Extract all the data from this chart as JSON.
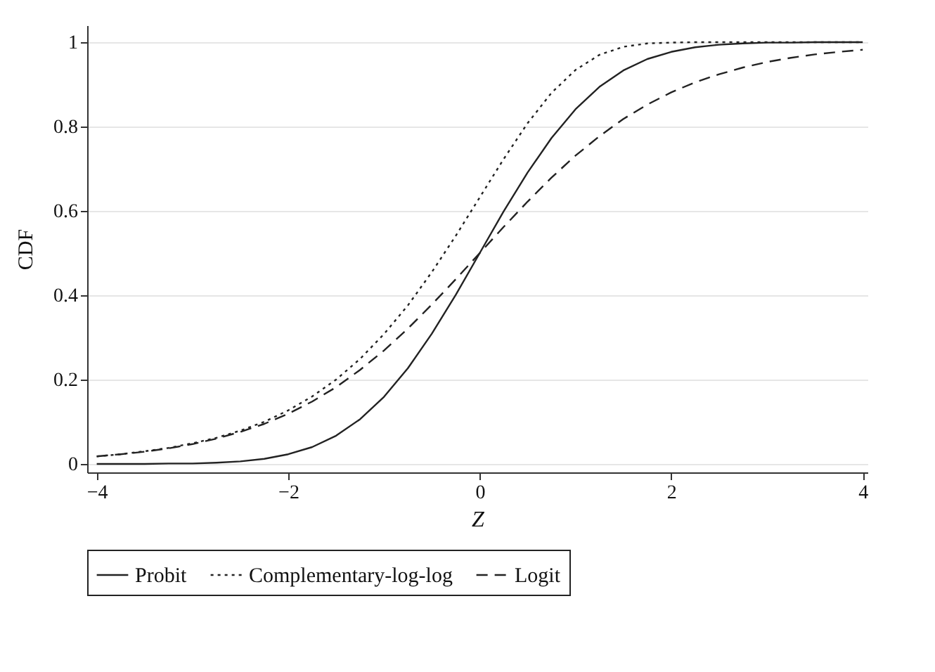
{
  "chart_data": {
    "type": "line",
    "xlabel": "Z",
    "ylabel": "CDF",
    "x": [
      -4,
      -3.75,
      -3.5,
      -3.25,
      -3,
      -2.75,
      -2.5,
      -2.25,
      -2,
      -1.75,
      -1.5,
      -1.25,
      -1,
      -0.75,
      -0.5,
      -0.25,
      0,
      0.25,
      0.5,
      0.75,
      1,
      1.25,
      1.5,
      1.75,
      2,
      2.25,
      2.5,
      2.75,
      3,
      3.25,
      3.5,
      3.75,
      4
    ],
    "series": [
      {
        "name": "Probit",
        "color": "#222222",
        "line_style": "solid",
        "values": [
          0.0,
          0.0,
          0.0,
          0.001,
          0.001,
          0.003,
          0.006,
          0.012,
          0.023,
          0.04,
          0.067,
          0.106,
          0.159,
          0.227,
          0.309,
          0.401,
          0.5,
          0.599,
          0.691,
          0.773,
          0.841,
          0.894,
          0.933,
          0.96,
          0.977,
          0.988,
          0.994,
          0.997,
          0.999,
          0.999,
          1,
          1,
          1
        ]
      },
      {
        "name": "Complementary-log-log",
        "color": "#222222",
        "line_style": "dotted",
        "values": [
          0.018,
          0.023,
          0.03,
          0.038,
          0.049,
          0.062,
          0.079,
          0.1,
          0.127,
          0.16,
          0.2,
          0.249,
          0.308,
          0.376,
          0.455,
          0.541,
          0.632,
          0.723,
          0.808,
          0.88,
          0.934,
          0.97,
          0.989,
          0.997,
          0.999,
          1,
          1,
          1,
          1,
          1,
          1,
          1,
          1
        ]
      },
      {
        "name": "Logit",
        "color": "#222222",
        "line_style": "dashed",
        "values": [
          0.018,
          0.023,
          0.029,
          0.037,
          0.047,
          0.06,
          0.076,
          0.095,
          0.119,
          0.148,
          0.182,
          0.223,
          0.269,
          0.321,
          0.378,
          0.438,
          0.5,
          0.562,
          0.622,
          0.679,
          0.731,
          0.777,
          0.818,
          0.852,
          0.881,
          0.905,
          0.924,
          0.94,
          0.953,
          0.963,
          0.971,
          0.977,
          0.982
        ]
      }
    ],
    "xlim": [
      -4.1,
      4.05
    ],
    "ylim": [
      -0.02,
      1.04
    ],
    "xticks": [
      -4,
      -2,
      0,
      2,
      4
    ],
    "yticks": [
      0,
      0.2,
      0.4,
      0.6,
      0.8,
      1
    ],
    "grid": "y",
    "legend": "bottom"
  }
}
